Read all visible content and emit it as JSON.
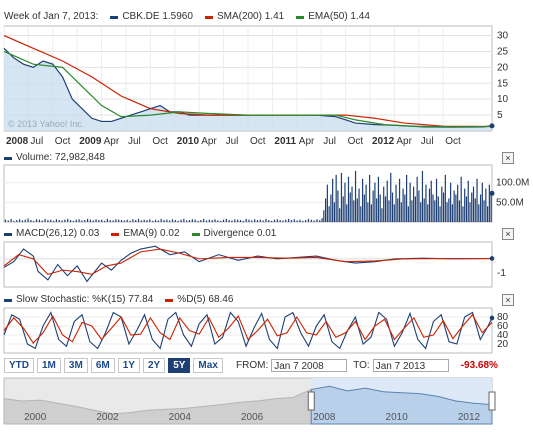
{
  "main_header": {
    "week": "Week of Jan 7, 2013:",
    "symbol": "CBK.DE 1.5960",
    "sma": "SMA(200) 1.41",
    "ema": "EMA(50) 1.44"
  },
  "watermark": "© 2013 Yahoo! Inc.",
  "volume_header": {
    "label": "Volume: 72,982,848"
  },
  "macd_header": {
    "macd": "MACD(26,12) 0.03",
    "ema": "EMA(9) 0.02",
    "divergence": "Divergence 0.01"
  },
  "stoch_header": {
    "k": "Slow Stochastic: %K(15) 77.84",
    "d": "%D(5) 68.46"
  },
  "close_label": "×",
  "ranges": [
    {
      "label": "YTD",
      "selected": false
    },
    {
      "label": "1M",
      "selected": false
    },
    {
      "label": "3M",
      "selected": false
    },
    {
      "label": "6M",
      "selected": false
    },
    {
      "label": "1Y",
      "selected": false
    },
    {
      "label": "2Y",
      "selected": false
    },
    {
      "label": "5Y",
      "selected": true
    },
    {
      "label": "Max",
      "selected": false
    }
  ],
  "date_range": {
    "from_label": "FROM:",
    "from_value": "Jan 7 2008",
    "to_label": "TO:",
    "to_value": "Jan 7 2013",
    "change": "-93.68%"
  },
  "colors": {
    "price": "#1d3f73",
    "sma": "#cc2200",
    "ema": "#2a8a2a",
    "fill": "#c8dcee",
    "stoch_d": "#cc2200"
  },
  "chart_data": [
    {
      "type": "line",
      "panel": "price",
      "x_tick_labels": [
        "2008",
        "Jul",
        "Oct",
        "2009",
        "Apr",
        "Jul",
        "Oct",
        "2010",
        "Apr",
        "Jul",
        "Oct",
        "2011",
        "Apr",
        "Jul",
        "Oct",
        "2012",
        "Apr",
        "Jul",
        "Oct"
      ],
      "y_ticks": [
        5,
        10,
        15,
        20,
        25,
        30
      ],
      "ylim": [
        0,
        33
      ],
      "series": [
        {
          "name": "CBK.DE",
          "x": [
            2008.0,
            2008.1,
            2008.2,
            2008.3,
            2008.4,
            2008.5,
            2008.6,
            2008.7,
            2008.8,
            2008.9,
            2009.0,
            2009.1,
            2009.2,
            2009.3,
            2009.4,
            2009.5,
            2009.6,
            2009.7,
            2009.8,
            2009.9,
            2010.0,
            2010.3,
            2010.6,
            2010.9,
            2011.0,
            2011.2,
            2011.4,
            2011.5,
            2011.6,
            2011.8,
            2012.0,
            2012.3,
            2012.6,
            2012.9,
            2013.0
          ],
          "y": [
            26,
            23,
            21,
            20,
            22,
            21,
            17,
            10,
            7,
            4,
            3,
            3,
            4,
            5,
            6,
            7,
            8,
            6,
            6,
            5,
            5,
            5,
            5,
            5,
            5,
            5,
            4.5,
            3.5,
            2.5,
            2,
            1.8,
            1.3,
            1.2,
            1.3,
            1.6
          ]
        },
        {
          "name": "SMA(200)",
          "x": [
            2008.0,
            2008.3,
            2008.6,
            2008.9,
            2009.2,
            2009.5,
            2009.8,
            2010.1,
            2010.5,
            2011.0,
            2011.5,
            2011.8,
            2012.1,
            2012.5,
            2013.0
          ],
          "y": [
            30,
            26,
            22,
            17,
            11,
            7,
            5.5,
            5,
            5,
            5,
            5,
            4,
            2.5,
            1.5,
            1.41
          ]
        },
        {
          "name": "EMA(50)",
          "x": [
            2008.0,
            2008.3,
            2008.6,
            2008.8,
            2009.0,
            2009.2,
            2009.5,
            2009.8,
            2010.1,
            2010.5,
            2011.0,
            2011.4,
            2011.6,
            2011.9,
            2012.2,
            2012.6,
            2013.0
          ],
          "y": [
            25,
            21,
            20,
            14,
            8,
            4.5,
            5,
            6,
            5.5,
            5,
            5,
            5,
            3.5,
            2,
            1.5,
            1.3,
            1.44
          ]
        }
      ]
    },
    {
      "type": "bar",
      "panel": "volume",
      "y_tick_labels": [
        "100.0M",
        "50.0M"
      ],
      "y_ticks": [
        100,
        50
      ],
      "ylim": [
        0,
        145
      ],
      "units": "M",
      "x_range": [
        2008.0,
        2013.0
      ],
      "values_2008_2011": [
        6,
        4,
        8,
        3,
        5,
        7,
        4,
        6,
        9,
        5,
        3,
        7,
        6,
        4,
        8,
        5,
        6,
        3,
        7,
        5,
        4,
        6,
        8,
        5,
        3,
        6,
        7,
        4,
        5,
        8,
        6,
        4,
        7,
        5,
        6,
        3,
        8,
        5,
        4,
        7,
        6,
        5,
        4,
        6,
        3,
        7,
        5,
        8,
        4,
        6,
        5,
        7,
        3,
        6,
        4,
        8,
        5,
        6,
        4,
        7,
        5,
        3,
        6,
        8,
        4,
        5,
        7,
        6,
        3,
        5,
        8,
        4,
        6,
        5,
        7,
        4,
        3,
        6,
        8,
        5,
        4,
        7,
        6,
        5,
        3,
        8,
        6,
        4,
        7,
        5,
        6,
        4,
        8,
        5,
        3,
        6,
        7,
        5,
        4,
        6,
        8,
        5,
        7,
        4,
        6,
        3,
        5,
        8,
        6,
        4,
        7,
        5
      ],
      "values_2011_2013": [
        10,
        30,
        60,
        95,
        40,
        70,
        110,
        50,
        120,
        80,
        35,
        125,
        65,
        100,
        45,
        115,
        75,
        90,
        55,
        130,
        60,
        85,
        40,
        110,
        70,
        95,
        50,
        120,
        45,
        80,
        100,
        60,
        115,
        70,
        35,
        90,
        65,
        105,
        55,
        125,
        75,
        45,
        95,
        60,
        110,
        50,
        85,
        70,
        120,
        40,
        100,
        55,
        90,
        65,
        115,
        80,
        50,
        130,
        60,
        95,
        45,
        85,
        105,
        70,
        55,
        110,
        65,
        40,
        90,
        75,
        120,
        50,
        60,
        100,
        45,
        80,
        70,
        95,
        55,
        115,
        40,
        85,
        65,
        105,
        50,
        75,
        90,
        60,
        110,
        45,
        70,
        100,
        55,
        85,
        40,
        95,
        73
      ]
    },
    {
      "type": "line",
      "panel": "macd",
      "y_tick_labels": [
        "-1"
      ],
      "y_ticks": [
        -1
      ],
      "ylim": [
        -2,
        1.2
      ],
      "series": [
        {
          "name": "MACD(26,12)",
          "x": [
            2008.0,
            2008.1,
            2008.2,
            2008.3,
            2008.35,
            2008.45,
            2008.55,
            2008.65,
            2008.75,
            2008.85,
            2009.0,
            2009.1,
            2009.2,
            2009.3,
            2009.4,
            2009.55,
            2009.7,
            2009.85,
            2010.0,
            2010.2,
            2010.4,
            2010.6,
            2010.8,
            2011.0,
            2011.2,
            2011.4,
            2011.6,
            2011.8,
            2012.0,
            2012.3,
            2012.6,
            2013.0
          ],
          "y": [
            -0.6,
            -0.2,
            0.7,
            0.2,
            -0.9,
            -1.5,
            -0.4,
            -1.2,
            -0.5,
            -1.6,
            -0.3,
            -0.8,
            -0.1,
            0.4,
            0.7,
            0.9,
            0.3,
            0.5,
            -0.2,
            0.3,
            -0.1,
            0.2,
            0.0,
            0.1,
            0.2,
            -0.1,
            -0.3,
            -0.2,
            0.0,
            0.05,
            0.0,
            0.03
          ]
        },
        {
          "name": "EMA(9)",
          "x": [
            2008.0,
            2008.15,
            2008.3,
            2008.45,
            2008.6,
            2008.75,
            2008.9,
            2009.05,
            2009.2,
            2009.4,
            2009.6,
            2009.8,
            2010.0,
            2010.3,
            2010.6,
            2010.9,
            2011.2,
            2011.5,
            2011.8,
            2012.1,
            2012.5,
            2013.0
          ],
          "y": [
            -0.5,
            0.3,
            0.0,
            -1.1,
            -0.8,
            -0.9,
            -1.1,
            -0.5,
            -0.3,
            0.5,
            0.7,
            0.4,
            0.0,
            0.1,
            0.1,
            0.05,
            0.1,
            -0.2,
            -0.15,
            0.0,
            0.02,
            0.02
          ]
        }
      ]
    },
    {
      "type": "line",
      "panel": "stochastic",
      "y_tick_labels": [
        "80",
        "60",
        "40",
        "20"
      ],
      "y_ticks": [
        80,
        60,
        40,
        20
      ],
      "ylim": [
        0,
        100
      ],
      "series": [
        {
          "name": "%K(15)",
          "x": [
            2008.0,
            2008.08,
            2008.16,
            2008.24,
            2008.32,
            2008.4,
            2008.48,
            2008.56,
            2008.64,
            2008.72,
            2008.8,
            2008.88,
            2008.96,
            2009.04,
            2009.12,
            2009.2,
            2009.28,
            2009.36,
            2009.44,
            2009.52,
            2009.6,
            2009.68,
            2009.76,
            2009.84,
            2009.92,
            2010.0,
            2010.08,
            2010.16,
            2010.24,
            2010.32,
            2010.4,
            2010.48,
            2010.56,
            2010.64,
            2010.72,
            2010.8,
            2010.88,
            2010.96,
            2011.04,
            2011.12,
            2011.2,
            2011.28,
            2011.36,
            2011.44,
            2011.52,
            2011.6,
            2011.68,
            2011.76,
            2011.84,
            2011.92,
            2012.0,
            2012.08,
            2012.16,
            2012.24,
            2012.32,
            2012.4,
            2012.48,
            2012.56,
            2012.64,
            2012.72,
            2012.8,
            2012.88,
            2012.96,
            2013.0
          ],
          "y": [
            40,
            85,
            75,
            20,
            10,
            60,
            90,
            30,
            15,
            70,
            85,
            25,
            10,
            45,
            90,
            80,
            20,
            50,
            85,
            30,
            10,
            75,
            90,
            40,
            15,
            65,
            85,
            20,
            35,
            90,
            70,
            15,
            55,
            88,
            30,
            10,
            80,
            90,
            45,
            15,
            60,
            85,
            25,
            10,
            50,
            80,
            20,
            35,
            90,
            75,
            15,
            45,
            88,
            30,
            10,
            70,
            85,
            25,
            20,
            80,
            90,
            30,
            60,
            78
          ]
        },
        {
          "name": "%D(5)",
          "x": [
            2008.0,
            2008.1,
            2008.2,
            2008.3,
            2008.4,
            2008.5,
            2008.6,
            2008.7,
            2008.8,
            2008.9,
            2009.0,
            2009.1,
            2009.2,
            2009.3,
            2009.4,
            2009.5,
            2009.6,
            2009.7,
            2009.8,
            2009.9,
            2010.0,
            2010.1,
            2010.2,
            2010.3,
            2010.4,
            2010.5,
            2010.6,
            2010.7,
            2010.8,
            2010.9,
            2011.0,
            2011.1,
            2011.2,
            2011.3,
            2011.4,
            2011.5,
            2011.6,
            2011.7,
            2011.8,
            2011.9,
            2012.0,
            2012.1,
            2012.2,
            2012.3,
            2012.4,
            2012.5,
            2012.6,
            2012.7,
            2012.8,
            2012.9,
            2013.0
          ],
          "y": [
            50,
            78,
            55,
            22,
            45,
            82,
            40,
            25,
            68,
            60,
            30,
            55,
            80,
            40,
            42,
            78,
            45,
            30,
            78,
            50,
            42,
            78,
            35,
            55,
            82,
            30,
            50,
            75,
            38,
            45,
            80,
            45,
            40,
            70,
            35,
            45,
            70,
            30,
            60,
            75,
            30,
            55,
            78,
            35,
            40,
            72,
            32,
            60,
            85,
            45,
            68
          ]
        }
      ]
    },
    {
      "type": "area",
      "panel": "navigator",
      "x_tick_labels": [
        "2000",
        "2002",
        "2004",
        "2006",
        "2008",
        "2010",
        "2012"
      ],
      "x_range": [
        1999.5,
        2013.0
      ],
      "selection": [
        2008.0,
        2013.0
      ],
      "x": [
        1999.5,
        2000.0,
        2000.5,
        2001.0,
        2001.5,
        2002.0,
        2002.5,
        2003.0,
        2003.5,
        2004.0,
        2004.5,
        2005.0,
        2005.5,
        2006.0,
        2006.5,
        2007.0,
        2007.5,
        2008.0,
        2008.5,
        2009.0,
        2009.5,
        2010.0,
        2010.5,
        2011.0,
        2011.5,
        2012.0,
        2012.5,
        2013.0
      ],
      "y": [
        0.55,
        0.5,
        0.52,
        0.45,
        0.38,
        0.3,
        0.22,
        0.25,
        0.3,
        0.32,
        0.34,
        0.38,
        0.42,
        0.47,
        0.5,
        0.55,
        0.58,
        0.75,
        0.82,
        0.72,
        0.78,
        0.7,
        0.68,
        0.66,
        0.6,
        0.5,
        0.45,
        0.42
      ]
    }
  ]
}
